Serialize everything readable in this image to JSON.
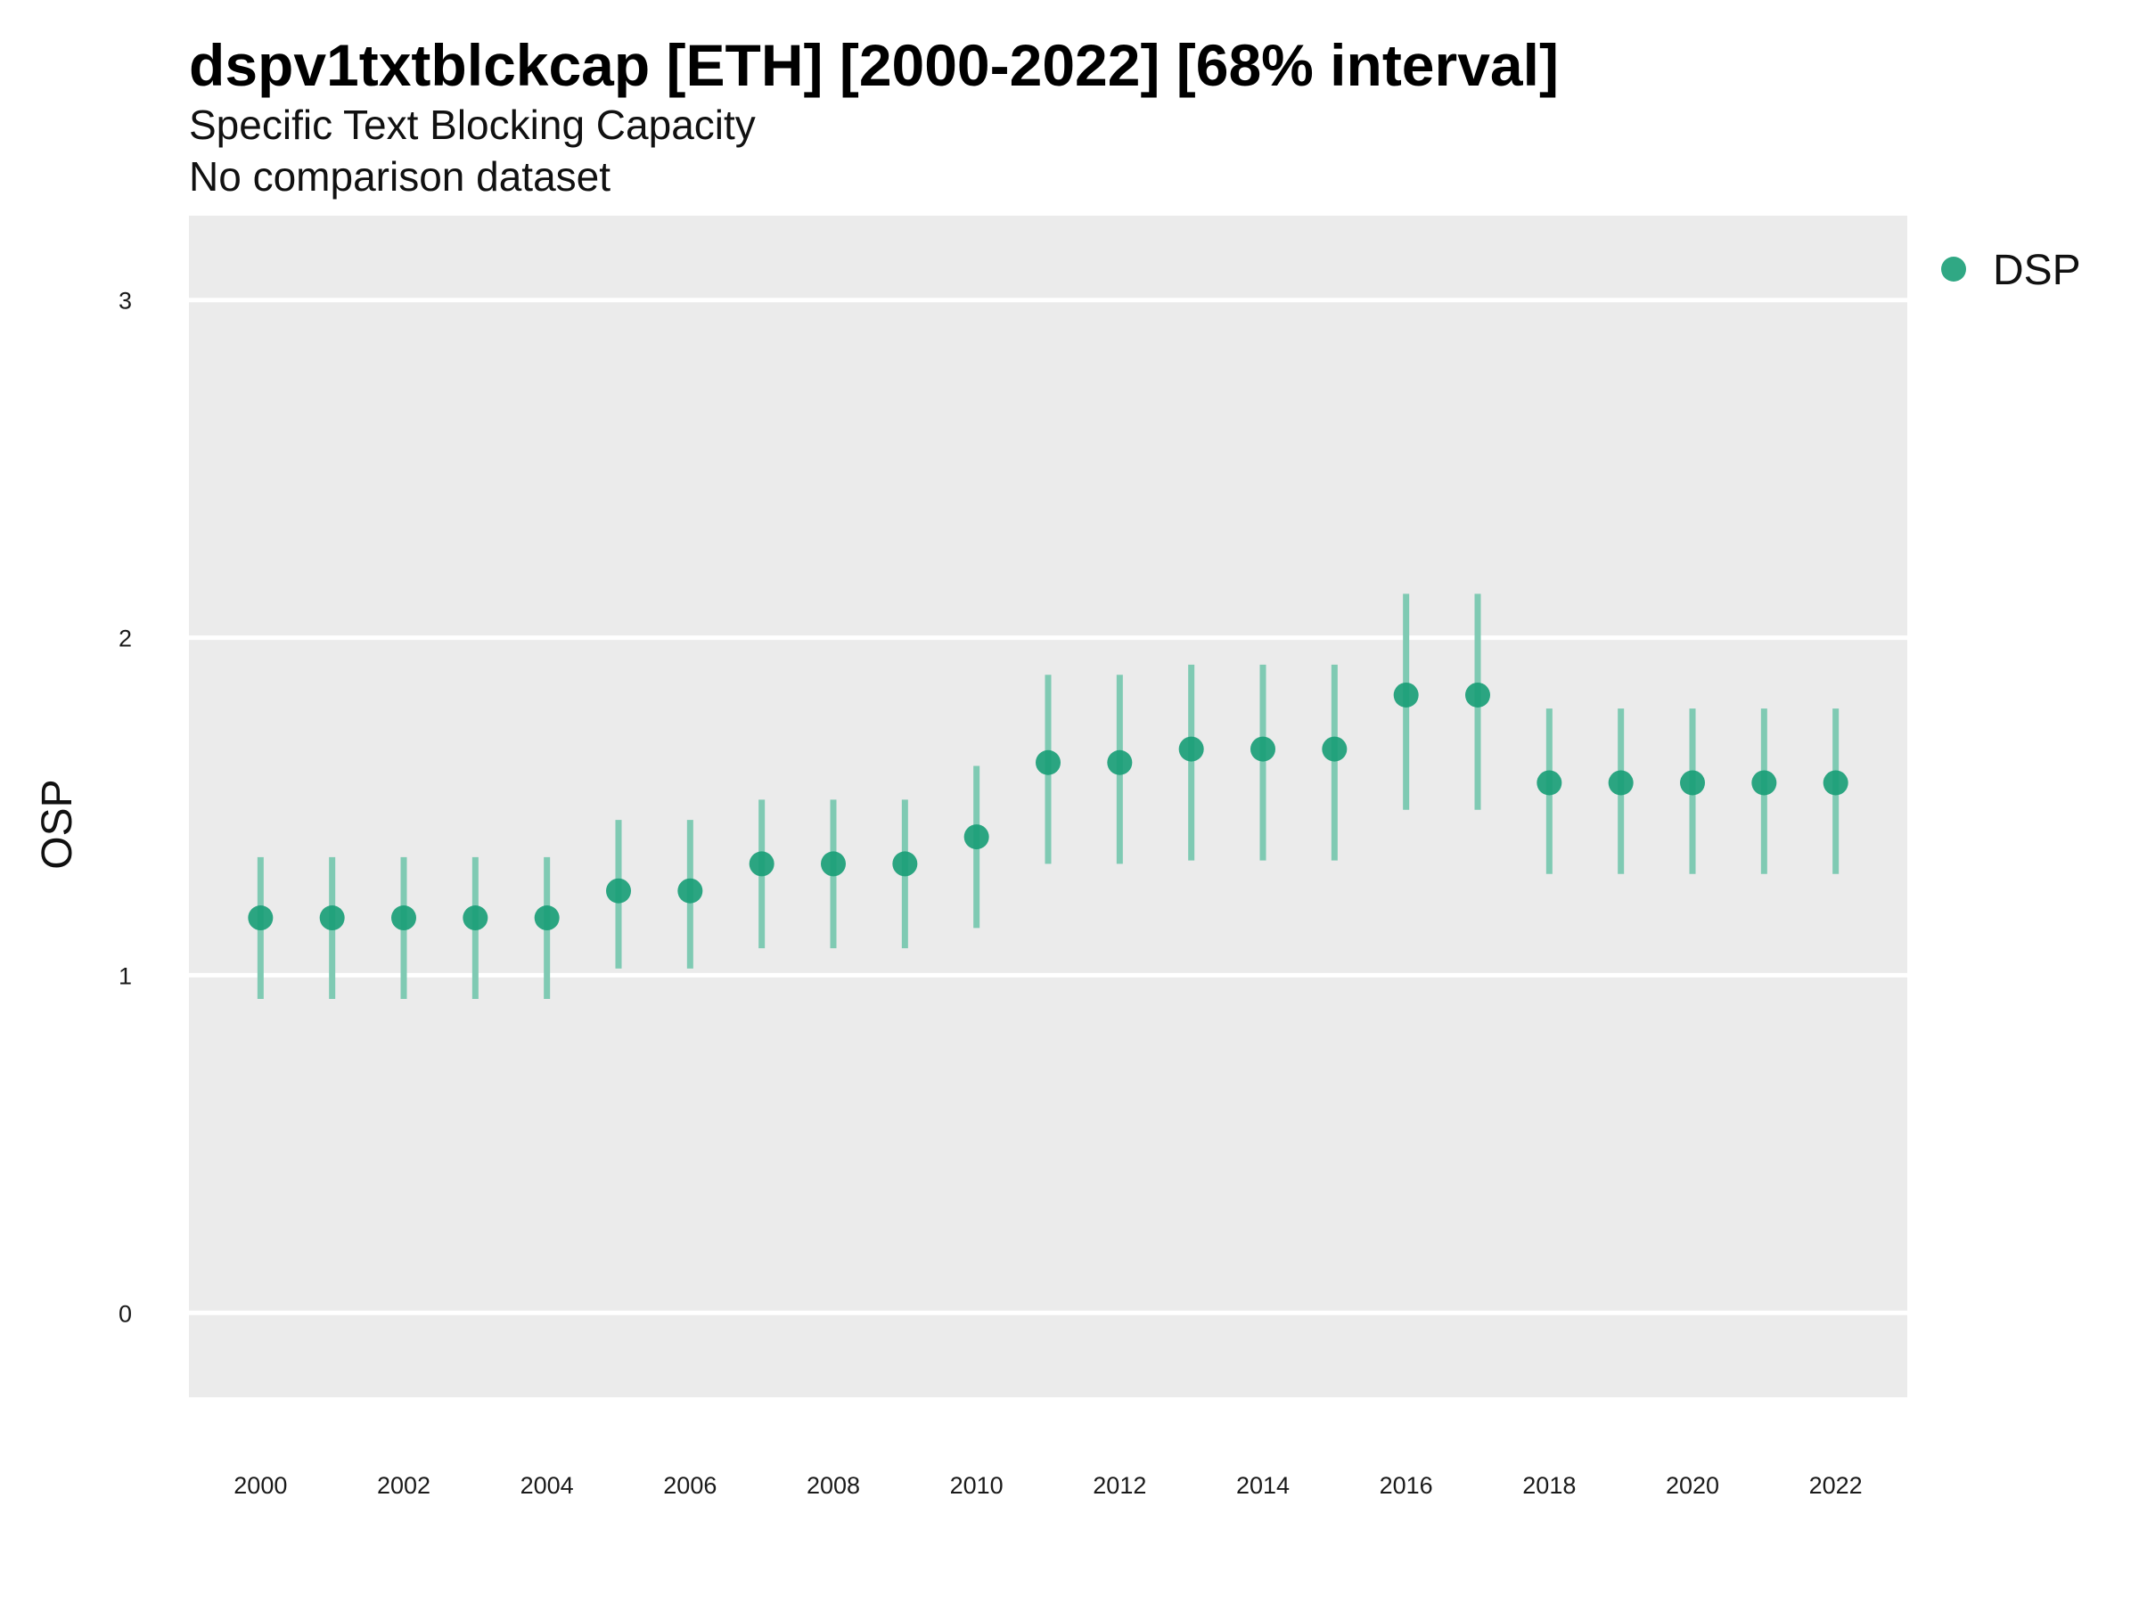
{
  "chart_data": {
    "type": "scatter",
    "title": "dspv1txtblckcap [ETH] [2000-2022] [68% interval]",
    "subtitle": "Specific Text Blocking Capacity",
    "caption": "No comparison dataset",
    "xlabel": "",
    "ylabel": "OSP",
    "xlim": [
      1999,
      2023
    ],
    "ylim": [
      -0.25,
      3.25
    ],
    "x_ticks": [
      "2000",
      "2002",
      "2004",
      "2006",
      "2008",
      "2010",
      "2012",
      "2014",
      "2016",
      "2018",
      "2020",
      "2022"
    ],
    "y_ticks": [
      "0",
      "1",
      "2",
      "3"
    ],
    "grid": true,
    "legend_position": "right-top",
    "colors": {
      "point": "#1a9e77",
      "interval": "#7fcab3",
      "panel": "#ebebeb",
      "grid": "#ffffff"
    },
    "series": [
      {
        "name": "DSP",
        "x": [
          2000,
          2001,
          2002,
          2003,
          2004,
          2005,
          2006,
          2007,
          2008,
          2009,
          2010,
          2011,
          2012,
          2013,
          2014,
          2015,
          2016,
          2017,
          2018,
          2019,
          2020,
          2021,
          2022
        ],
        "y": [
          1.17,
          1.17,
          1.17,
          1.17,
          1.17,
          1.25,
          1.25,
          1.33,
          1.33,
          1.33,
          1.41,
          1.63,
          1.63,
          1.67,
          1.67,
          1.67,
          1.83,
          1.83,
          1.57,
          1.57,
          1.57,
          1.57,
          1.57
        ],
        "lower": [
          0.93,
          0.93,
          0.93,
          0.93,
          0.93,
          1.02,
          1.02,
          1.08,
          1.08,
          1.08,
          1.14,
          1.33,
          1.33,
          1.34,
          1.34,
          1.34,
          1.49,
          1.49,
          1.3,
          1.3,
          1.3,
          1.3,
          1.3
        ],
        "upper": [
          1.35,
          1.35,
          1.35,
          1.35,
          1.35,
          1.46,
          1.46,
          1.52,
          1.52,
          1.52,
          1.62,
          1.89,
          1.89,
          1.92,
          1.92,
          1.92,
          2.13,
          2.13,
          1.79,
          1.79,
          1.79,
          1.79,
          1.79
        ]
      }
    ]
  }
}
